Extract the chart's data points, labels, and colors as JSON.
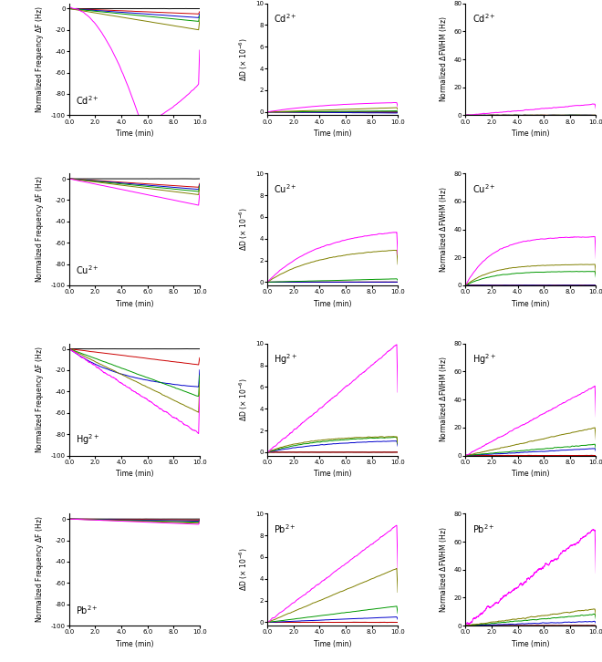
{
  "ions": [
    "Cd2+",
    "Cu2+",
    "Hg2+",
    "Pb2+"
  ],
  "line_colors": [
    "#000000",
    "#cc0000",
    "#0000cc",
    "#009900",
    "#808000",
    "#ff00ff"
  ],
  "xlabel": "Time (min)",
  "ylabel_freq": "Normalized Frequency ΔF (Hz)",
  "ylabel_diss": "ΔD (x 10⁻⁶)",
  "ylabel_fwhm": "Normalized ΔFWHM (Hz)",
  "freq_ylim": [
    -100,
    5
  ],
  "diss_ylim": [
    0,
    10
  ],
  "fwhm_ylim": [
    0,
    80
  ]
}
